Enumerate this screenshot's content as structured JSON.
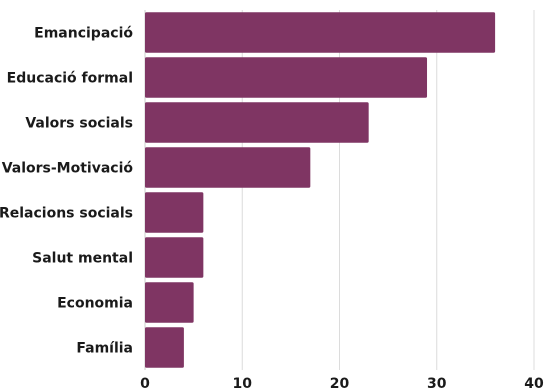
{
  "chart_data": {
    "type": "bar",
    "orientation": "horizontal",
    "categories": [
      "Emancipació",
      "Educació formal",
      "Valors socials",
      "Valors-Motivació",
      "Relacions socials",
      "Salut mental",
      "Economia",
      "Família"
    ],
    "values": [
      36,
      29,
      23,
      17,
      6,
      6,
      5,
      4
    ],
    "xlim": [
      0,
      40
    ],
    "xticks": [
      0,
      10,
      20,
      30,
      40
    ],
    "grid": true,
    "bar_color": "#7f3563",
    "title": "",
    "xlabel": "",
    "ylabel": ""
  }
}
